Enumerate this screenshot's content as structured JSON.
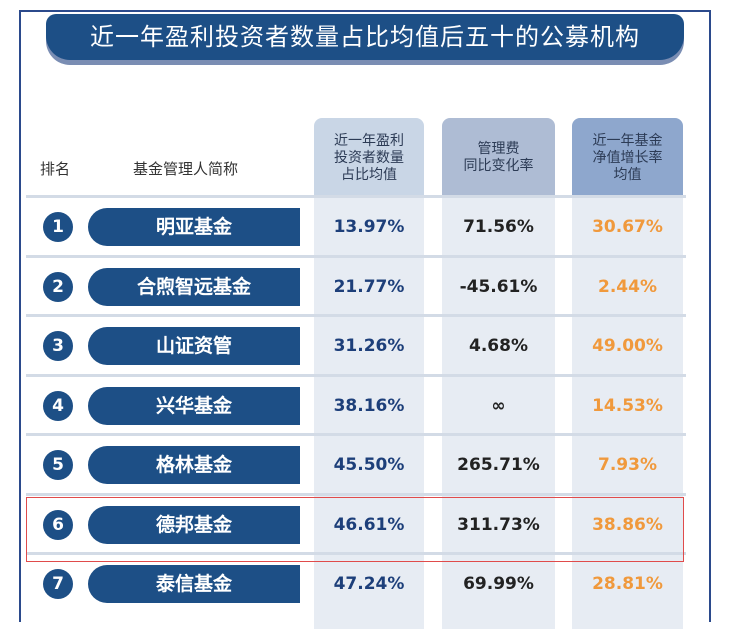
{
  "title": "近一年盈利投资者数量占比均值后五十的公募机构",
  "headers": {
    "rank": "排名",
    "manager": "基金管理人简称",
    "col1": "近一年盈利\n投资者数量\n占比均值",
    "col2": "管理费\n同比变化率",
    "col3": "近一年基金\n净值增长率\n均值"
  },
  "rows": [
    {
      "rank": "1",
      "name": "明亚基金",
      "c1": "13.97%",
      "c2": "71.56%",
      "c3": "30.67%"
    },
    {
      "rank": "2",
      "name": "合煦智远基金",
      "c1": "21.77%",
      "c2": "-45.61%",
      "c3": "2.44%"
    },
    {
      "rank": "3",
      "name": "山证资管",
      "c1": "31.26%",
      "c2": "4.68%",
      "c3": "49.00%"
    },
    {
      "rank": "4",
      "name": "兴华基金",
      "c1": "38.16%",
      "c2": "∞",
      "c3": "14.53%"
    },
    {
      "rank": "5",
      "name": "格林基金",
      "c1": "45.50%",
      "c2": "265.71%",
      "c3": "7.93%"
    },
    {
      "rank": "6",
      "name": "德邦基金",
      "c1": "46.61%",
      "c2": "311.73%",
      "c3": "38.86%"
    },
    {
      "rank": "7",
      "name": "泰信基金",
      "c1": "47.24%",
      "c2": "69.99%",
      "c3": "28.81%"
    }
  ],
  "colors": {
    "brand": "#1d4f86",
    "col1_header": "#c9d6e6",
    "col2_header": "#aebcd4",
    "col3_header": "#8ea7cd",
    "col3_text": "#f0993c",
    "highlight": "#e04b4b"
  },
  "chart_data": {
    "type": "table",
    "title": "近一年盈利投资者数量占比均值后五十的公募机构",
    "columns": [
      "排名",
      "基金管理人简称",
      "近一年盈利投资者数量占比均值",
      "管理费同比变化率",
      "近一年基金净值增长率均值"
    ],
    "rows": [
      [
        1,
        "明亚基金",
        "13.97%",
        "71.56%",
        "30.67%"
      ],
      [
        2,
        "合煦智远基金",
        "21.77%",
        "-45.61%",
        "2.44%"
      ],
      [
        3,
        "山证资管",
        "31.26%",
        "4.68%",
        "49.00%"
      ],
      [
        4,
        "兴华基金",
        "38.16%",
        "∞",
        "14.53%"
      ],
      [
        5,
        "格林基金",
        "45.50%",
        "265.71%",
        "7.93%"
      ],
      [
        6,
        "德邦基金",
        "46.61%",
        "311.73%",
        "38.86%"
      ],
      [
        7,
        "泰信基金",
        "47.24%",
        "69.99%",
        "28.81%"
      ]
    ],
    "highlighted_row": 6
  }
}
